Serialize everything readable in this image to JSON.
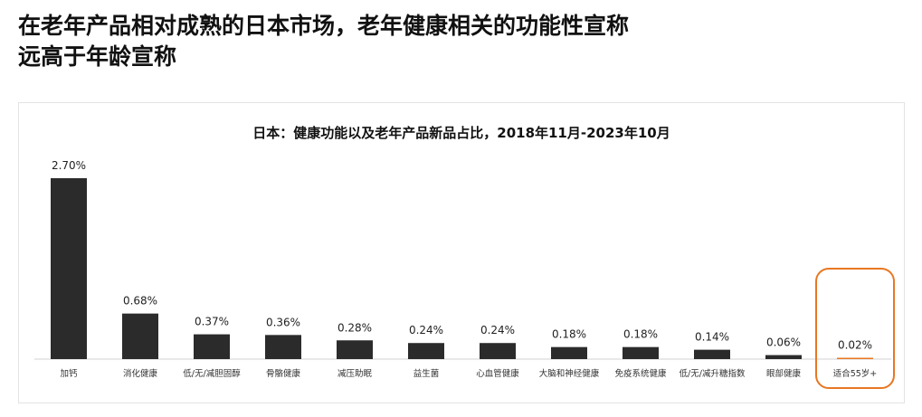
{
  "headline": {
    "line1": "在老年产品相对成熟的日本市场，老年健康相关的功能性宣称",
    "line2": "远高于年龄宣称"
  },
  "chart_data": {
    "type": "bar",
    "title": "日本：健康功能以及老年产品新品占比，2018年11月-2023年10月",
    "categories": [
      "加钙",
      "消化健康",
      "低/无/减胆固醇",
      "骨骼健康",
      "减压助眠",
      "益生菌",
      "心血管健康",
      "大脑和神经健康",
      "免疫系统健康",
      "低/无/减升糖指数",
      "眼部健康",
      "适合55岁+"
    ],
    "values": [
      2.7,
      0.68,
      0.37,
      0.36,
      0.28,
      0.24,
      0.24,
      0.18,
      0.18,
      0.14,
      0.06,
      0.02
    ],
    "labels": [
      "2.70%",
      "0.68%",
      "0.37%",
      "0.36%",
      "0.28%",
      "0.24%",
      "0.24%",
      "0.18%",
      "0.18%",
      "0.14%",
      "0.06%",
      "0.02%"
    ],
    "unit": "%",
    "ylim": [
      0,
      2.7
    ],
    "grid": false,
    "highlight_index": 11,
    "colors": {
      "bar": "#2b2b2b",
      "highlight_bar": "#e87722",
      "highlight_box": "#e87722"
    }
  }
}
